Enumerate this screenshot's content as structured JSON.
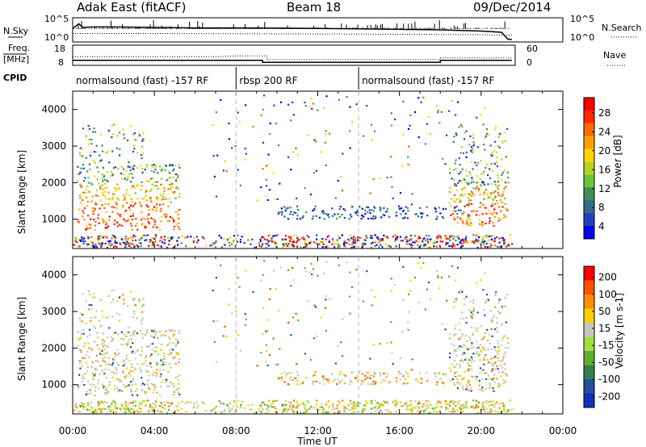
{
  "header": {
    "station": "Adak East (fitACF)",
    "beam": "Beam 18",
    "date": "09/Dec/2014"
  },
  "panels": {
    "nsky": {
      "left_label": "N.Sky",
      "right_label": "N.Search",
      "y_ticks": [
        "10^5",
        "10^0"
      ]
    },
    "freq": {
      "left_label_1": "Freq.",
      "left_label_2": "[MHz]",
      "right_label": "Nave",
      "left_ticks": [
        "18",
        "8"
      ],
      "right_ticks": [
        "60",
        "0"
      ]
    },
    "cpid": {
      "label": "CPID",
      "segments": [
        {
          "start": 0,
          "end": 8,
          "text": "normalsound (fast) -157 RF"
        },
        {
          "start": 8,
          "end": 14,
          "text": "rbsp 200 RF"
        },
        {
          "start": 14,
          "end": 24,
          "text": "normalsound (fast) -157 RF"
        }
      ]
    }
  },
  "chart_data": [
    {
      "type": "line",
      "name": "sky noise / search noise",
      "x_unit": "hours UT",
      "xlim": [
        0,
        24
      ],
      "series": [
        {
          "name": "N.Sky",
          "style": "solid",
          "x": [
            0,
            0.3,
            0.5,
            1,
            2,
            4,
            6,
            8,
            10,
            12,
            14,
            16,
            18,
            20,
            21,
            21.3,
            21.5
          ],
          "y": [
            0.55,
            0.75,
            0.6,
            0.62,
            0.62,
            0.6,
            0.58,
            0.58,
            0.57,
            0.56,
            0.54,
            0.52,
            0.5,
            0.45,
            0.4,
            0.12,
            0.1
          ]
        },
        {
          "name": "N.Search",
          "style": "dotted",
          "x": [
            0,
            4,
            8,
            12,
            16,
            20,
            21.5
          ],
          "y": [
            0.35,
            0.35,
            0.34,
            0.33,
            0.32,
            0.3,
            0.28
          ]
        }
      ]
    },
    {
      "type": "line",
      "name": "frequency / nave",
      "xlim": [
        0,
        24
      ],
      "left_ylim": [
        8,
        18
      ],
      "right_ylim": [
        0,
        60
      ],
      "series": [
        {
          "name": "Freq",
          "style": "solid",
          "axis": "left",
          "x": [
            0,
            9.3,
            9.3,
            18,
            18,
            21.5
          ],
          "y": [
            10.5,
            10.5,
            9.5,
            9.5,
            10.5,
            10.5
          ]
        },
        {
          "name": "Nave",
          "style": "dotted",
          "axis": "right",
          "x": [
            0,
            7,
            8,
            9.5,
            9.5,
            18,
            18,
            21.5
          ],
          "y": [
            26,
            26,
            28,
            28,
            17,
            17,
            22,
            22
          ]
        }
      ]
    },
    {
      "type": "heatmap",
      "name": "power",
      "xlabel": "",
      "ylabel": "Slant Range [km]",
      "xlim": [
        0,
        24
      ],
      "ylim": [
        200,
        4500
      ],
      "y_ticks": [
        1000,
        2000,
        3000,
        4000
      ],
      "colorbar": {
        "label": "Power [dB]",
        "ticks": [
          4,
          8,
          12,
          16,
          20,
          24,
          28
        ],
        "colors": [
          "#0000ff",
          "#1e40c0",
          "#2f6e8a",
          "#3e8f5a",
          "#6cc43a",
          "#b0d820",
          "#ffd700",
          "#ffa200",
          "#ff6a00",
          "#ff2a00",
          "#ff0000"
        ]
      },
      "regions": [
        {
          "x": [
            0.2,
            5.2
          ],
          "range": [
            700,
            2500
          ],
          "level": "high"
        },
        {
          "x": [
            0.3,
            3.5
          ],
          "range": [
            2500,
            3600
          ],
          "level": "mid"
        },
        {
          "x": [
            10,
            19.6
          ],
          "range": [
            1000,
            1350
          ],
          "level": "low"
        },
        {
          "x": [
            18.4,
            21.3
          ],
          "range": [
            800,
            2400
          ],
          "level": "high"
        },
        {
          "x": [
            18.6,
            21.3
          ],
          "range": [
            2400,
            3600
          ],
          "level": "mid"
        }
      ]
    },
    {
      "type": "heatmap",
      "name": "velocity",
      "xlabel": "Time UT",
      "ylabel": "Slant Range [km]",
      "xlim": [
        0,
        24
      ],
      "ylim": [
        200,
        4500
      ],
      "y_ticks": [
        1000,
        2000,
        3000,
        4000
      ],
      "x_ticks": [
        "00:00",
        "04:00",
        "08:00",
        "12:00",
        "16:00",
        "20:00",
        "00:00"
      ],
      "colorbar": {
        "label": "Velocity [m s-1]",
        "ticks": [
          "200",
          "100",
          "50",
          "15",
          "-15",
          "-50",
          "-100",
          "-200"
        ],
        "colors": [
          "#1030c0",
          "#2050a0",
          "#308050",
          "#60b030",
          "#a0e040",
          "#c8c8c0",
          "#ffd000",
          "#ff9000",
          "#ff5000",
          "#ff0000"
        ]
      }
    }
  ],
  "footer": {
    "time_label": "Time UT"
  }
}
